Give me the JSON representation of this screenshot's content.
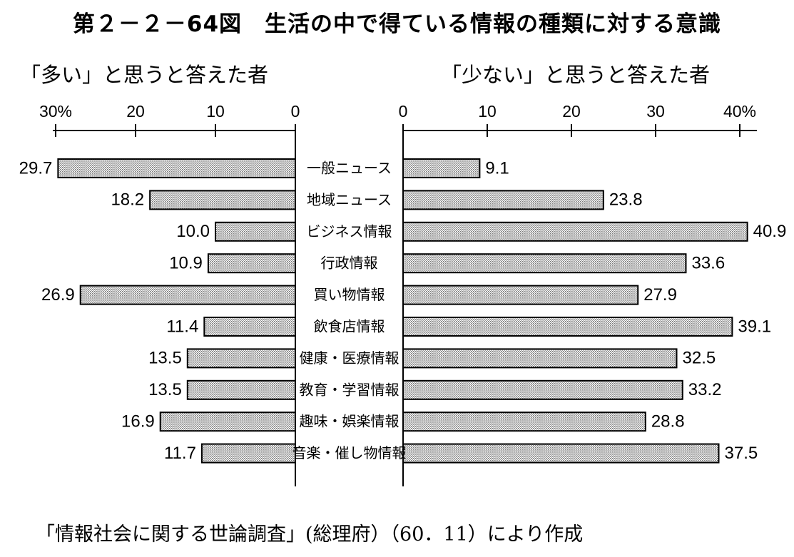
{
  "title": "第２－２－64図　生活の中で得ている情報の種類に対する意識",
  "subtitle_left": "「多い」と思うと答えた者",
  "subtitle_right": "「少ない」と思うと答えた者",
  "source": "「情報社会に関する世論調査」(総理府）（60．11）により作成",
  "chart_data": [
    {
      "type": "bar",
      "orientation": "horizontal",
      "direction": "leftward",
      "title": "「多い」と思うと答えた者",
      "categories": [
        "一般ニュース",
        "地域ニュース",
        "ビジネス情報",
        "行政情報",
        "買い物情報",
        "飲食店情報",
        "健康・医療情報",
        "教育・学習情報",
        "趣味・娯楽情報",
        "音楽・催し物情報"
      ],
      "values": [
        29.7,
        18.2,
        10.0,
        10.9,
        26.9,
        11.4,
        13.5,
        13.5,
        16.9,
        11.7
      ],
      "value_labels": [
        "29.7",
        "18.2",
        "10.0",
        "10.9",
        "26.9",
        "11.4",
        "13.5",
        "13.5",
        "16.9",
        "11.7"
      ],
      "xlim": [
        0,
        30
      ],
      "ticks": [
        30,
        20,
        10,
        0
      ],
      "tick_labels": [
        "30%",
        "20",
        "10",
        "0"
      ],
      "bar_fill": "dotted gray"
    },
    {
      "type": "bar",
      "orientation": "horizontal",
      "direction": "rightward",
      "title": "「少ない」と思うと答えた者",
      "categories": [
        "一般ニュース",
        "地域ニュース",
        "ビジネス情報",
        "行政情報",
        "買い物情報",
        "飲食店情報",
        "健康・医療情報",
        "教育・学習情報",
        "趣味・娯楽情報",
        "音楽・催し物情報"
      ],
      "values": [
        9.1,
        23.8,
        40.9,
        33.6,
        27.9,
        39.1,
        32.5,
        33.2,
        28.8,
        37.5
      ],
      "value_labels": [
        "9.1",
        "23.8",
        "40.9",
        "33.6",
        "27.9",
        "39.1",
        "32.5",
        "33.2",
        "28.8",
        "37.5"
      ],
      "xlim": [
        0,
        40
      ],
      "ticks": [
        0,
        10,
        20,
        30,
        40
      ],
      "tick_labels": [
        "0",
        "10",
        "20",
        "30",
        "40%"
      ],
      "bar_fill": "dotted gray"
    }
  ]
}
